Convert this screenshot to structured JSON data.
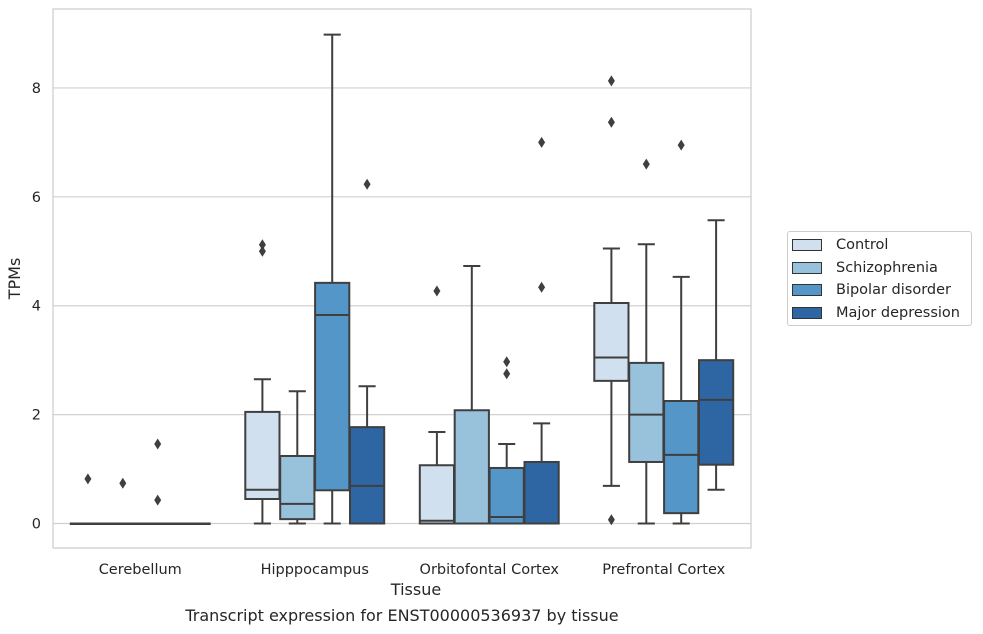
{
  "chart_data": {
    "type": "box",
    "xlabel": "Tissue",
    "ylabel": "TPMs",
    "caption": "Transcript expression for ENST00000536937 by tissue",
    "ylim": [
      -0.45,
      9.45
    ],
    "yticks": [
      0,
      2,
      4,
      6,
      8
    ],
    "grid": true,
    "legend_position": "right",
    "categories": [
      "Cerebellum",
      "Hipppocampus",
      "Orbitofontal Cortex",
      "Prefrontal Cortex"
    ],
    "series": [
      {
        "name": "Control",
        "color": "#d1e0ef",
        "boxes": [
          {
            "min": 0,
            "q1": 0,
            "median": 0,
            "q3": 0,
            "max": 0,
            "outliers": [
              0.82
            ]
          },
          {
            "min": 0,
            "q1": 0.45,
            "median": 0.62,
            "q3": 2.05,
            "max": 2.65,
            "outliers": [
              5.12,
              5.0
            ]
          },
          {
            "min": 0,
            "q1": 0,
            "median": 0.05,
            "q3": 1.07,
            "max": 1.68,
            "outliers": [
              4.27
            ]
          },
          {
            "min": 0.69,
            "q1": 2.62,
            "median": 3.05,
            "q3": 4.05,
            "max": 5.05,
            "outliers": [
              8.13,
              7.37,
              0.07
            ]
          }
        ]
      },
      {
        "name": "Schizophrenia",
        "color": "#98c1dc",
        "boxes": [
          {
            "min": 0,
            "q1": 0,
            "median": 0,
            "q3": 0,
            "max": 0,
            "outliers": [
              0.74
            ]
          },
          {
            "min": 0,
            "q1": 0.08,
            "median": 0.36,
            "q3": 1.24,
            "max": 2.43,
            "outliers": []
          },
          {
            "min": 0,
            "q1": 0,
            "median": 0,
            "q3": 2.08,
            "max": 4.73,
            "outliers": []
          },
          {
            "min": 0,
            "q1": 1.13,
            "median": 2.0,
            "q3": 2.95,
            "max": 5.13,
            "outliers": [
              6.6
            ]
          }
        ]
      },
      {
        "name": "Bipolar disorder",
        "color": "#5596c8",
        "boxes": [
          {
            "min": 0,
            "q1": 0,
            "median": 0,
            "q3": 0,
            "max": 0,
            "outliers": [
              1.46,
              0.43
            ]
          },
          {
            "min": 0,
            "q1": 0.61,
            "median": 3.83,
            "q3": 4.42,
            "max": 8.98,
            "outliers": []
          },
          {
            "min": 0,
            "q1": 0,
            "median": 0.12,
            "q3": 1.02,
            "max": 1.46,
            "outliers": [
              2.97,
              2.75
            ]
          },
          {
            "min": 0,
            "q1": 0.19,
            "median": 1.26,
            "q3": 2.25,
            "max": 4.53,
            "outliers": [
              6.95
            ]
          }
        ]
      },
      {
        "name": "Major depression",
        "color": "#2e66a3",
        "boxes": [
          {
            "min": 0,
            "q1": 0,
            "median": 0,
            "q3": 0,
            "max": 0,
            "outliers": []
          },
          {
            "min": 0,
            "q1": 0,
            "median": 0.69,
            "q3": 1.77,
            "max": 2.52,
            "outliers": [
              6.23
            ]
          },
          {
            "min": 0,
            "q1": 0,
            "median": 0,
            "q3": 1.13,
            "max": 1.84,
            "outliers": [
              7.0,
              4.34
            ]
          },
          {
            "min": 0.62,
            "q1": 1.08,
            "median": 2.27,
            "q3": 3.0,
            "max": 5.57,
            "outliers": []
          }
        ]
      }
    ]
  }
}
